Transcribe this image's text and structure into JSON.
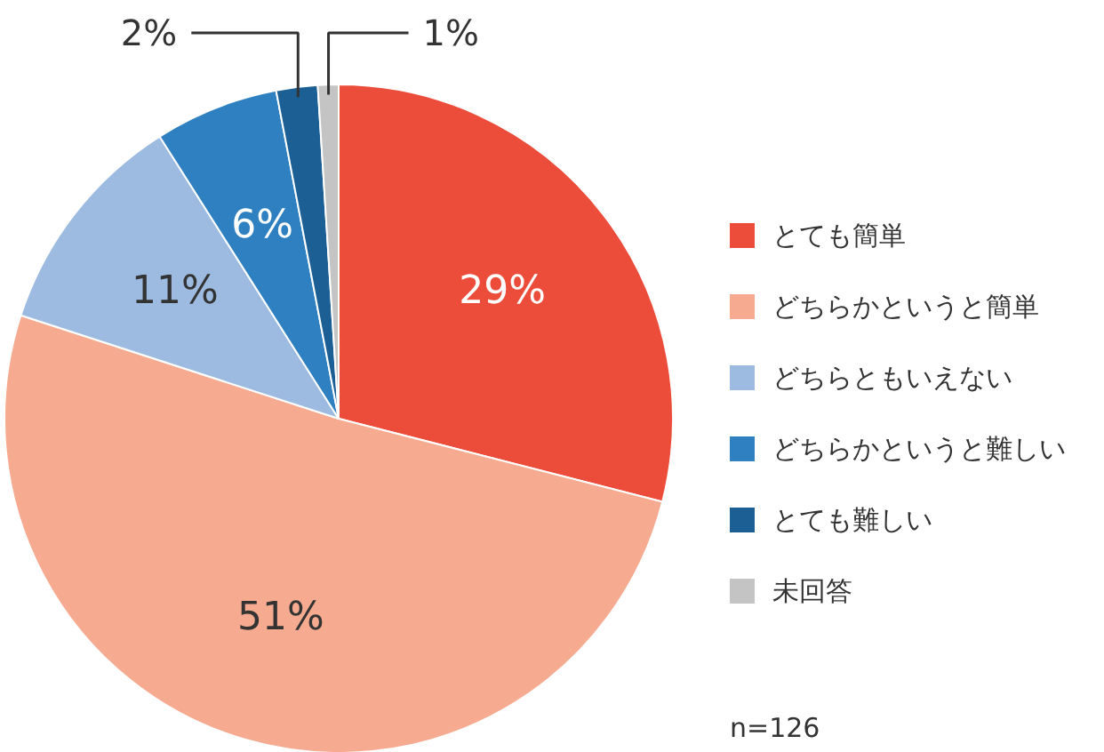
{
  "chart_data": {
    "type": "pie",
    "categories": [
      "とても簡単",
      "どちらかというと簡単",
      "どちらともいえない",
      "どちらかというと難しい",
      "とても難しい",
      "未回答"
    ],
    "values": [
      29,
      51,
      11,
      6,
      2,
      1
    ],
    "colors": [
      "#ec4d3b",
      "#f6aa90",
      "#9dbbe0",
      "#2f80c0",
      "#1b5f95",
      "#c4c4c4"
    ],
    "value_labels": [
      "29%",
      "51%",
      "11%",
      "6%",
      "2%",
      "1%"
    ],
    "legend": "right",
    "annotations": [
      "n=126"
    ]
  }
}
